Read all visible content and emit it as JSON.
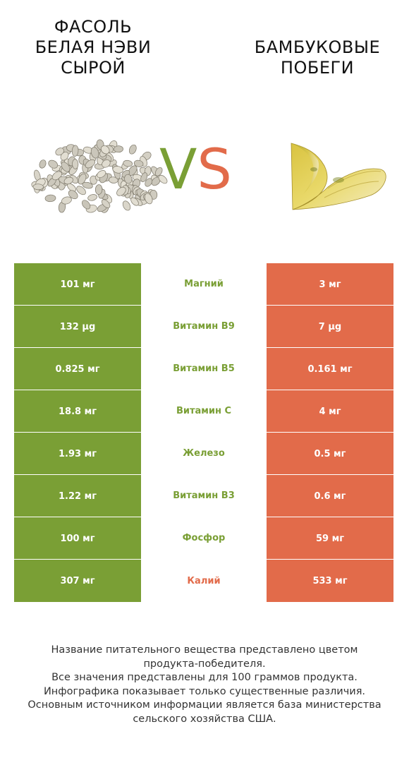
{
  "left_title": "ФАСОЛЬ\nБЕЛАЯ НЭВИ\nСЫРОЙ",
  "right_title": "БАМБУКОВЫЕ\nПОБЕГИ",
  "vs": {
    "v": "V",
    "s": "S"
  },
  "colors": {
    "left": "#7a9f35",
    "right": "#e26b4a"
  },
  "rows": [
    {
      "left": "101 мг",
      "name": "Магний",
      "right": "3 мг",
      "winner": "left"
    },
    {
      "left": "132 µg",
      "name": "Витамин B9",
      "right": "7 µg",
      "winner": "left"
    },
    {
      "left": "0.825 мг",
      "name": "Витамин B5",
      "right": "0.161 мг",
      "winner": "left"
    },
    {
      "left": "18.8 мг",
      "name": "Витамин C",
      "right": "4 мг",
      "winner": "left"
    },
    {
      "left": "1.93 мг",
      "name": "Железо",
      "right": "0.5 мг",
      "winner": "left"
    },
    {
      "left": "1.22 мг",
      "name": "Витамин B3",
      "right": "0.6 мг",
      "winner": "left"
    },
    {
      "left": "100 мг",
      "name": "Фосфор",
      "right": "59 мг",
      "winner": "left"
    },
    {
      "left": "307 мг",
      "name": "Калий",
      "right": "533 мг",
      "winner": "right"
    }
  ],
  "footer": [
    "Название питательного вещества представлено цветом",
    "продукта-победителя.",
    "Все значения представлены для 100 граммов продукта.",
    "Инфографика показывает только существенные различия.",
    "Основным источником информации является база министерства",
    "сельского хозяйства США."
  ]
}
